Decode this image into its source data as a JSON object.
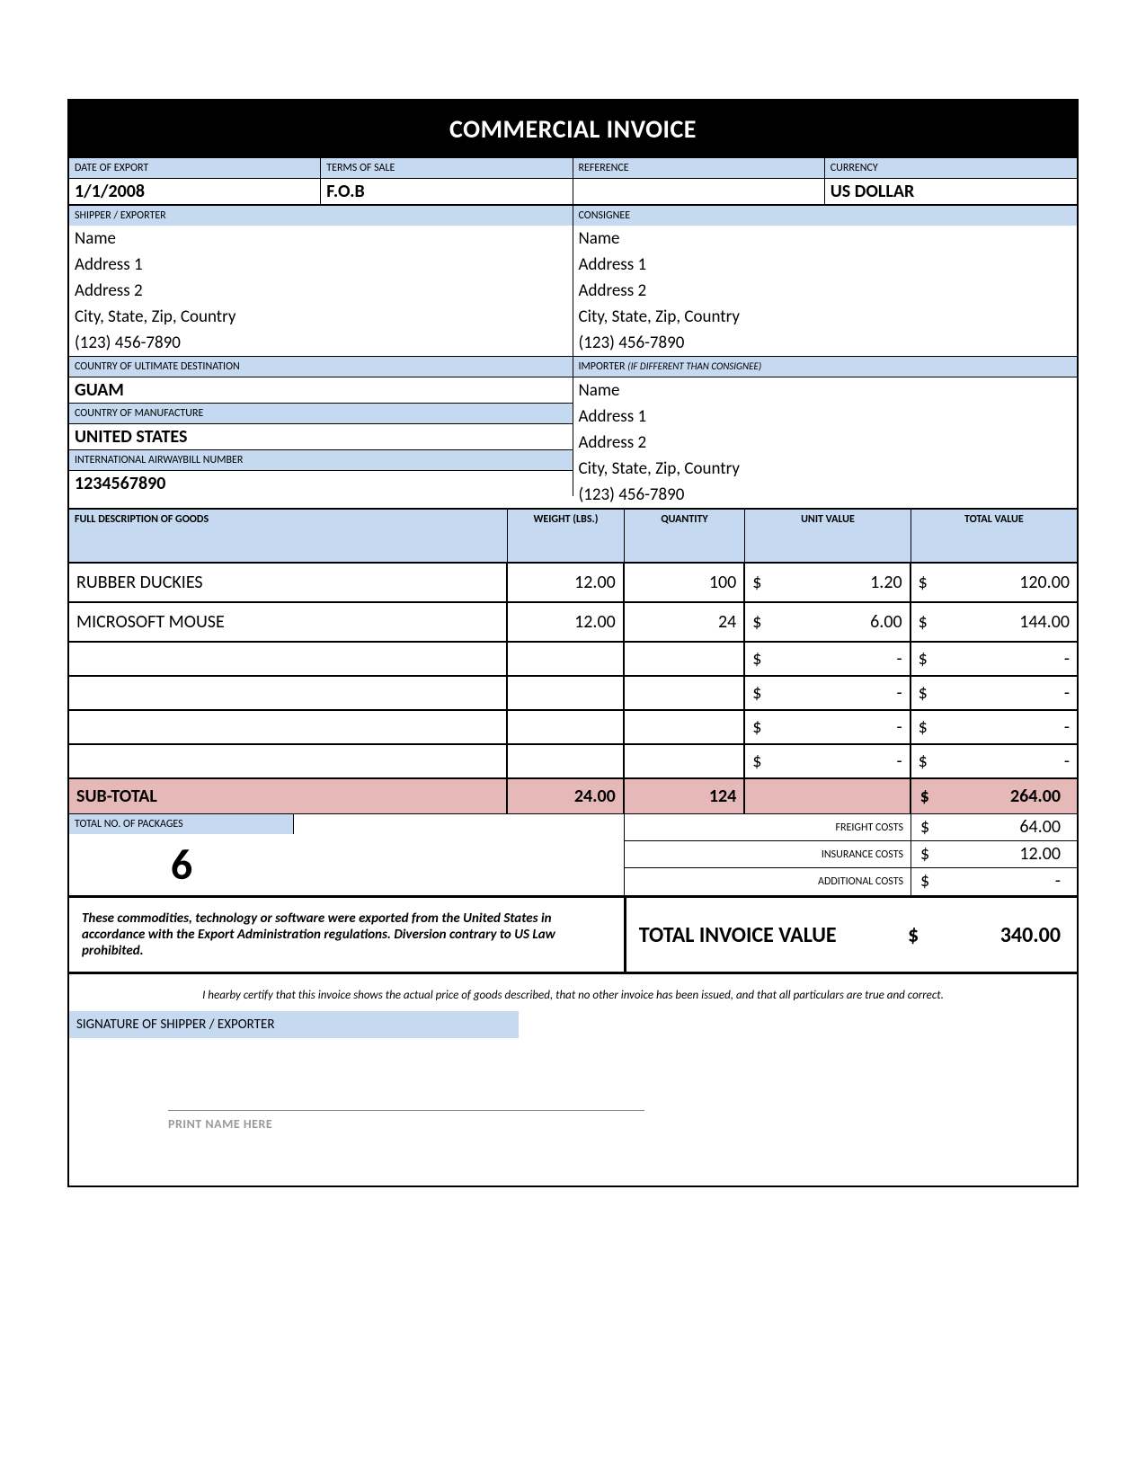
{
  "title": "COMMERCIAL INVOICE",
  "labels": {
    "date_of_export": "DATE OF EXPORT",
    "terms_of_sale": "TERMS OF SALE",
    "reference": "REFERENCE",
    "currency": "CURRENCY",
    "shipper": "SHIPPER / EXPORTER",
    "consignee": "CONSIGNEE",
    "country_dest": "COUNTRY OF ULTIMATE DESTINATION",
    "importer": "IMPORTER",
    "importer_note": "(IF DIFFERENT THAN CONSIGNEE)",
    "country_mfg": "COUNTRY OF MANUFACTURE",
    "airwaybill": "INTERNATIONAL AIRWAYBILL NUMBER",
    "desc": "FULL DESCRIPTION OF GOODS",
    "weight": "WEIGHT (LBS.)",
    "quantity": "QUANTITY",
    "unit_value": "UNIT VALUE",
    "total_value": "TOTAL VALUE",
    "subtotal": "SUB-TOTAL",
    "packages": "TOTAL NO. OF PACKAGES",
    "freight": "FREIGHT COSTS",
    "insurance": "INSURANCE COSTS",
    "additional": "ADDITIONAL COSTS",
    "total_invoice": "TOTAL INVOICE VALUE",
    "signature": "SIGNATURE OF SHIPPER / EXPORTER",
    "print_name": "PRINT NAME HERE"
  },
  "header": {
    "date_of_export": "1/1/2008",
    "terms_of_sale": "F.O.B",
    "reference": "",
    "currency": "US DOLLAR"
  },
  "shipper": {
    "name": "Name",
    "addr1": "Address 1",
    "addr2": "Address 2",
    "city": "City, State, Zip, Country",
    "phone": "(123) 456-7890"
  },
  "consignee": {
    "name": "Name",
    "addr1": "Address 1",
    "addr2": "Address 2",
    "city": "City, State, Zip, Country",
    "phone": "(123) 456-7890"
  },
  "importer": {
    "name": "Name",
    "addr1": "Address 1",
    "addr2": "Address 2",
    "city": "City, State, Zip, Country",
    "phone": "(123) 456-7890"
  },
  "country_dest": "GUAM",
  "country_mfg": "UNITED STATES",
  "airwaybill": "1234567890",
  "goods": {
    "rows": [
      {
        "desc": "RUBBER DUCKIES",
        "weight": "12.00",
        "qty": "100",
        "unit": "1.20",
        "total": "120.00"
      },
      {
        "desc": "MICROSOFT MOUSE",
        "weight": "12.00",
        "qty": "24",
        "unit": "6.00",
        "total": "144.00"
      },
      {
        "desc": "",
        "weight": "",
        "qty": "",
        "unit": "-",
        "total": "-"
      },
      {
        "desc": "",
        "weight": "",
        "qty": "",
        "unit": "-",
        "total": "-"
      },
      {
        "desc": "",
        "weight": "",
        "qty": "",
        "unit": "-",
        "total": "-"
      },
      {
        "desc": "",
        "weight": "",
        "qty": "",
        "unit": "-",
        "total": "-"
      }
    ]
  },
  "subtotal": {
    "weight": "24.00",
    "qty": "124",
    "total": "264.00"
  },
  "packages": "6",
  "costs": {
    "freight": "64.00",
    "insurance": "12.00",
    "additional": "-"
  },
  "total_invoice": "340.00",
  "disclaimer": "These commodities, technology or software were exported from the United States in accordance with the Export Administration regulations.  Diversion contrary to US Law prohibited.",
  "certification": "I hearby certify that this invoice shows the actual price of goods described, that no other invoice has been issued, and that all particulars are true and correct.",
  "colors": {
    "header_bg": "#000000",
    "label_bg": "#c5d9f1",
    "subtotal_bg": "#e6b8b7",
    "text": "#000000"
  }
}
